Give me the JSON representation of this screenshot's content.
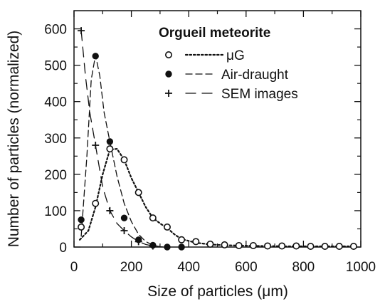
{
  "chart_data": {
    "type": "scatter",
    "title": "Orgueil meteorite",
    "xlabel": "Size of particles (μm)",
    "ylabel": "Number of particles (normalized)",
    "xlim": [
      0,
      1000
    ],
    "ylim": [
      0,
      650
    ],
    "xticks": [
      "0",
      "200",
      "400",
      "600",
      "800",
      "1000"
    ],
    "yticks": [
      "0",
      "100",
      "200",
      "300",
      "400",
      "500",
      "600"
    ],
    "grid": false,
    "legend_position": "top-right",
    "series": [
      {
        "name": "μG",
        "marker": "open-circle",
        "line": "dotted",
        "points": [
          [
            25,
            55
          ],
          [
            75,
            120
          ],
          [
            125,
            270
          ],
          [
            175,
            240
          ],
          [
            225,
            150
          ],
          [
            275,
            80
          ],
          [
            325,
            55
          ],
          [
            375,
            20
          ],
          [
            425,
            15
          ],
          [
            475,
            8
          ],
          [
            525,
            6
          ],
          [
            575,
            4
          ],
          [
            625,
            4
          ],
          [
            675,
            3
          ],
          [
            725,
            3
          ],
          [
            775,
            3
          ],
          [
            825,
            2
          ],
          [
            875,
            2
          ],
          [
            925,
            2
          ],
          [
            975,
            2
          ]
        ],
        "curve": [
          [
            20,
            20
          ],
          [
            50,
            45
          ],
          [
            75,
            110
          ],
          [
            100,
            200
          ],
          [
            125,
            268
          ],
          [
            150,
            270
          ],
          [
            175,
            240
          ],
          [
            200,
            190
          ],
          [
            225,
            150
          ],
          [
            250,
            110
          ],
          [
            275,
            80
          ],
          [
            300,
            65
          ],
          [
            325,
            52
          ],
          [
            350,
            35
          ],
          [
            375,
            22
          ],
          [
            425,
            12
          ],
          [
            475,
            7
          ],
          [
            525,
            5
          ],
          [
            575,
            4
          ],
          [
            650,
            3
          ],
          [
            750,
            2
          ],
          [
            850,
            2
          ],
          [
            975,
            2
          ]
        ]
      },
      {
        "name": "Air-draught",
        "marker": "filled-circle",
        "line": "dashed",
        "points": [
          [
            25,
            75
          ],
          [
            75,
            525
          ],
          [
            125,
            290
          ],
          [
            175,
            80
          ],
          [
            225,
            20
          ],
          [
            275,
            5
          ],
          [
            325,
            0
          ],
          [
            375,
            0
          ]
        ],
        "curve": [
          [
            25,
            30
          ],
          [
            45,
            250
          ],
          [
            60,
            460
          ],
          [
            75,
            528
          ],
          [
            90,
            470
          ],
          [
            105,
            370
          ],
          [
            125,
            290
          ],
          [
            150,
            195
          ],
          [
            175,
            120
          ],
          [
            200,
            70
          ],
          [
            225,
            35
          ],
          [
            250,
            15
          ],
          [
            275,
            5
          ],
          [
            300,
            1
          ],
          [
            325,
            0
          ]
        ]
      },
      {
        "name": "SEM images",
        "marker": "plus",
        "line": "long-dashed",
        "points": [
          [
            25,
            595
          ],
          [
            75,
            280
          ],
          [
            125,
            100
          ],
          [
            175,
            45
          ],
          [
            225,
            15
          ],
          [
            275,
            3
          ]
        ],
        "curve": [
          [
            25,
            595
          ],
          [
            40,
            470
          ],
          [
            55,
            370
          ],
          [
            75,
            280
          ],
          [
            100,
            165
          ],
          [
            125,
            100
          ],
          [
            150,
            65
          ],
          [
            175,
            45
          ],
          [
            200,
            28
          ],
          [
            225,
            15
          ],
          [
            250,
            7
          ],
          [
            275,
            3
          ],
          [
            300,
            1
          ]
        ]
      }
    ]
  }
}
